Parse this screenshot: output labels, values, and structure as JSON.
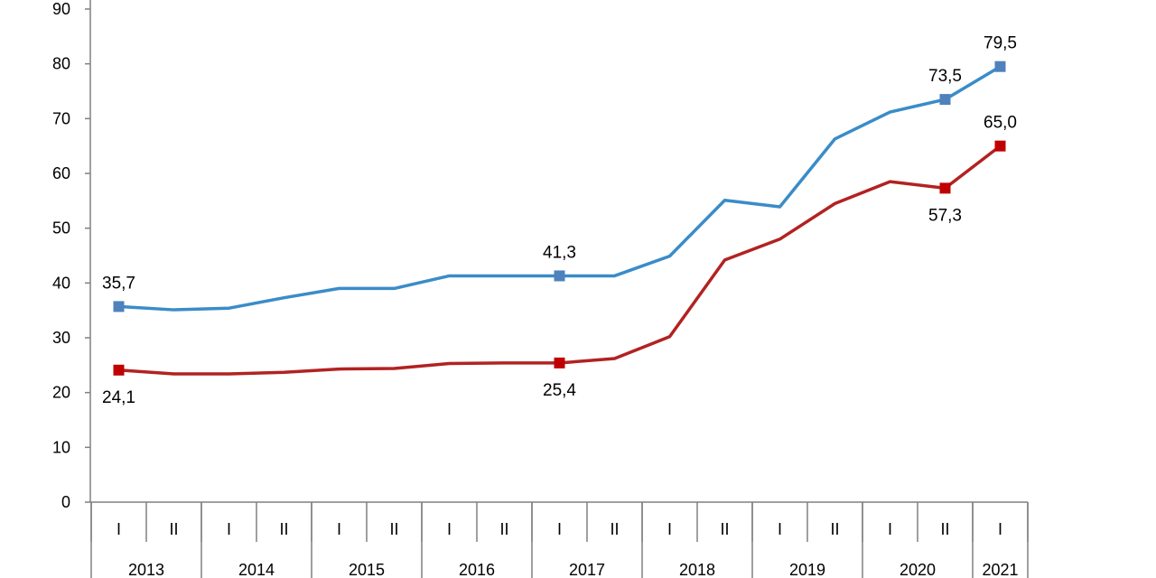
{
  "chart_data": {
    "type": "line",
    "title": "",
    "xlabel": "",
    "ylabel": "",
    "ylim": [
      0,
      90
    ],
    "yticks": [
      0,
      10,
      20,
      30,
      40,
      50,
      60,
      70,
      80,
      90
    ],
    "grid": false,
    "legend": "none",
    "periods": [
      "I",
      "II",
      "I",
      "II",
      "I",
      "II",
      "I",
      "II",
      "I",
      "II",
      "I",
      "II",
      "I",
      "II",
      "I",
      "II",
      "I"
    ],
    "years": [
      "2013",
      "2014",
      "2015",
      "2016",
      "2017",
      "2018",
      "2019",
      "2020",
      "2021"
    ],
    "series": [
      {
        "color": "#3a8cc8",
        "marker_color": "#4f81bd",
        "values": [
          35.7,
          35.1,
          35.4,
          37.3,
          39.0,
          39.0,
          41.3,
          41.3,
          41.3,
          41.3,
          44.9,
          55.1,
          53.9,
          66.3,
          71.2,
          73.5,
          79.5
        ],
        "labels": [
          {
            "index": 0,
            "text": "35,7",
            "pos": "above"
          },
          {
            "index": 8,
            "text": "41,3",
            "pos": "above"
          },
          {
            "index": 15,
            "text": "73,5",
            "pos": "above"
          },
          {
            "index": 16,
            "text": "79,5",
            "pos": "above"
          }
        ]
      },
      {
        "color": "#b22222",
        "marker_color": "#c00000",
        "values": [
          24.1,
          23.4,
          23.4,
          23.7,
          24.3,
          24.4,
          25.3,
          25.4,
          25.4,
          26.2,
          30.2,
          44.2,
          48.0,
          54.5,
          58.5,
          57.3,
          65.0
        ],
        "labels": [
          {
            "index": 0,
            "text": "24,1",
            "pos": "below"
          },
          {
            "index": 8,
            "text": "25,4",
            "pos": "below"
          },
          {
            "index": 15,
            "text": "57,3",
            "pos": "below"
          },
          {
            "index": 16,
            "text": "65,0",
            "pos": "above"
          }
        ]
      }
    ],
    "markers_at": [
      0,
      8,
      15,
      16
    ]
  }
}
